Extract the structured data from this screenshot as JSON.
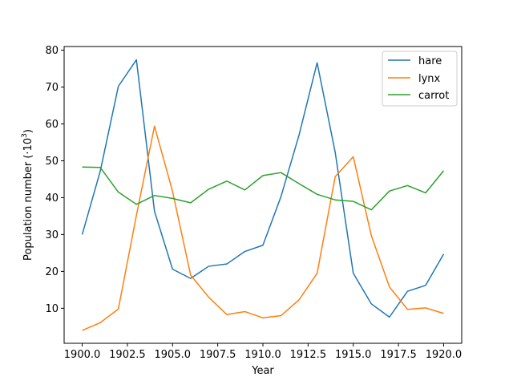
{
  "chart_data": {
    "type": "line",
    "title": "",
    "xlabel": "Year",
    "ylabel_prefix": "Population number (·10",
    "ylabel_exp": "3",
    "ylabel_suffix": ")",
    "xlim": [
      1899.0,
      1921.0
    ],
    "ylim": [
      0.5,
      81
    ],
    "xticks": [
      1900.0,
      1902.5,
      1905.0,
      1907.5,
      1910.0,
      1912.5,
      1915.0,
      1917.5,
      1920.0
    ],
    "xtick_labels": [
      "1900.0",
      "1902.5",
      "1905.0",
      "1907.5",
      "1910.0",
      "1912.5",
      "1915.0",
      "1917.5",
      "1920.0"
    ],
    "yticks": [
      10,
      20,
      30,
      40,
      50,
      60,
      70,
      80
    ],
    "ytick_labels": [
      "10",
      "20",
      "30",
      "40",
      "50",
      "60",
      "70",
      "80"
    ],
    "grid": false,
    "legend_position": "top-right",
    "x": [
      1900,
      1901,
      1902,
      1903,
      1904,
      1905,
      1906,
      1907,
      1908,
      1909,
      1910,
      1911,
      1912,
      1913,
      1914,
      1915,
      1916,
      1917,
      1918,
      1919,
      1920
    ],
    "series": [
      {
        "name": "hare",
        "color": "#1f77b4",
        "values": [
          30.0,
          47.2,
          70.2,
          77.4,
          36.3,
          20.6,
          18.1,
          21.4,
          22.0,
          25.4,
          27.1,
          40.3,
          57.0,
          76.6,
          52.3,
          19.5,
          11.2,
          7.6,
          14.6,
          16.2,
          24.7
        ]
      },
      {
        "name": "lynx",
        "color": "#ff7f0e",
        "values": [
          4.0,
          6.1,
          9.8,
          35.2,
          59.4,
          41.7,
          19.0,
          13.0,
          8.3,
          9.1,
          7.4,
          8.0,
          12.3,
          19.5,
          45.7,
          51.1,
          29.7,
          15.8,
          9.7,
          10.1,
          8.6
        ]
      },
      {
        "name": "carrot",
        "color": "#2ca02c",
        "values": [
          48.3,
          48.2,
          41.5,
          38.2,
          40.6,
          39.8,
          38.6,
          42.3,
          44.5,
          42.1,
          46.0,
          46.8,
          43.8,
          40.9,
          39.4,
          39.0,
          36.7,
          41.8,
          43.3,
          41.3,
          47.3
        ]
      }
    ]
  }
}
